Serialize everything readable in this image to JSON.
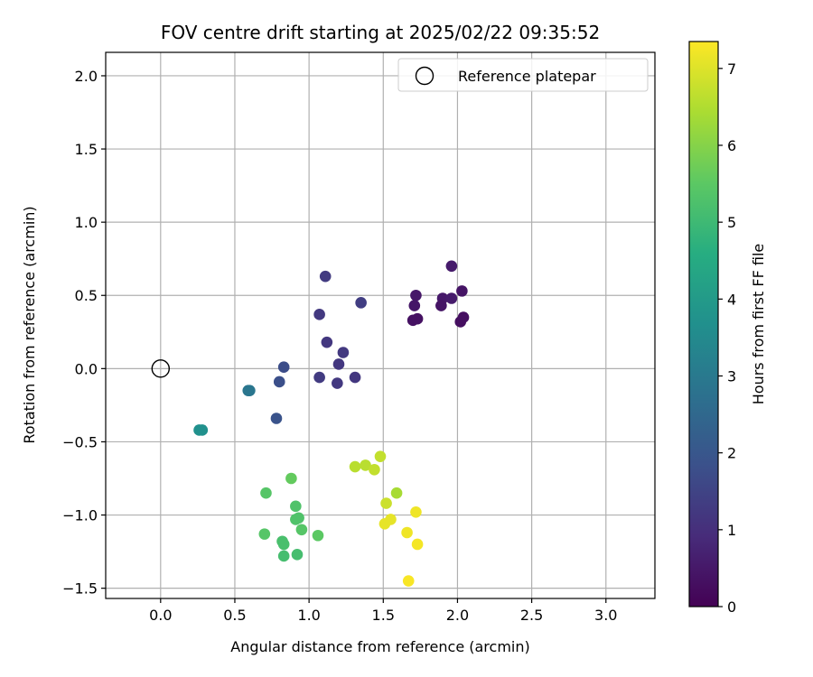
{
  "chart_data": {
    "type": "scatter",
    "title": "FOV centre drift starting at 2025/02/22 09:35:52",
    "xlabel": "Angular distance from reference (arcmin)",
    "ylabel": "Rotation from reference (arcmin)",
    "xlim": [
      -0.37,
      3.33
    ],
    "ylim": [
      -1.57,
      2.16
    ],
    "xticks": [
      "0.0",
      "0.5",
      "1.0",
      "1.5",
      "2.0",
      "2.5",
      "3.0"
    ],
    "yticks": [
      "−1.5",
      "−1.0",
      "−0.5",
      "0.0",
      "0.5",
      "1.0",
      "1.5",
      "2.0"
    ],
    "grid": true,
    "legend": {
      "position": "top-right",
      "entries": [
        "Reference platepar"
      ]
    },
    "reference_point": {
      "x": 0.0,
      "y": 0.0
    },
    "colorbar": {
      "label": "Hours from first FF file",
      "range": [
        0,
        7.35
      ],
      "ticks": [
        "0",
        "1",
        "2",
        "3",
        "4",
        "5",
        "6",
        "7"
      ],
      "colormap": "viridis"
    },
    "points": [
      {
        "x": 1.96,
        "y": 0.7,
        "c": 0.55
      },
      {
        "x": 1.72,
        "y": 0.5,
        "c": 0.5
      },
      {
        "x": 1.9,
        "y": 0.48,
        "c": 0.5
      },
      {
        "x": 1.96,
        "y": 0.48,
        "c": 0.55
      },
      {
        "x": 2.03,
        "y": 0.53,
        "c": 0.4
      },
      {
        "x": 1.71,
        "y": 0.43,
        "c": 0.45
      },
      {
        "x": 1.89,
        "y": 0.43,
        "c": 0.4
      },
      {
        "x": 1.7,
        "y": 0.33,
        "c": 0.35
      },
      {
        "x": 1.73,
        "y": 0.34,
        "c": 0.35
      },
      {
        "x": 2.02,
        "y": 0.32,
        "c": 0.3
      },
      {
        "x": 2.04,
        "y": 0.35,
        "c": 0.3
      },
      {
        "x": 1.11,
        "y": 0.63,
        "c": 1.3
      },
      {
        "x": 1.07,
        "y": 0.37,
        "c": 1.25
      },
      {
        "x": 1.35,
        "y": 0.45,
        "c": 1.35
      },
      {
        "x": 1.12,
        "y": 0.18,
        "c": 1.2
      },
      {
        "x": 1.23,
        "y": 0.11,
        "c": 1.25
      },
      {
        "x": 1.2,
        "y": 0.03,
        "c": 1.2
      },
      {
        "x": 1.07,
        "y": -0.06,
        "c": 1.3
      },
      {
        "x": 1.19,
        "y": -0.1,
        "c": 1.25
      },
      {
        "x": 1.31,
        "y": -0.06,
        "c": 1.2
      },
      {
        "x": 0.83,
        "y": 0.01,
        "c": 1.75
      },
      {
        "x": 0.8,
        "y": -0.09,
        "c": 1.8
      },
      {
        "x": 0.78,
        "y": -0.34,
        "c": 1.9
      },
      {
        "x": 0.59,
        "y": -0.15,
        "c": 2.9
      },
      {
        "x": 0.6,
        "y": -0.15,
        "c": 2.9
      },
      {
        "x": 0.26,
        "y": -0.42,
        "c": 3.7
      },
      {
        "x": 0.28,
        "y": -0.42,
        "c": 3.7
      },
      {
        "x": 0.88,
        "y": -0.75,
        "c": 5.6
      },
      {
        "x": 0.71,
        "y": -0.85,
        "c": 5.4
      },
      {
        "x": 0.91,
        "y": -0.94,
        "c": 5.3
      },
      {
        "x": 0.91,
        "y": -1.03,
        "c": 5.3
      },
      {
        "x": 0.93,
        "y": -1.02,
        "c": 5.3
      },
      {
        "x": 0.95,
        "y": -1.1,
        "c": 5.4
      },
      {
        "x": 0.7,
        "y": -1.13,
        "c": 5.4
      },
      {
        "x": 0.82,
        "y": -1.18,
        "c": 5.2
      },
      {
        "x": 0.83,
        "y": -1.2,
        "c": 5.2
      },
      {
        "x": 1.06,
        "y": -1.14,
        "c": 5.5
      },
      {
        "x": 0.83,
        "y": -1.28,
        "c": 5.15
      },
      {
        "x": 0.92,
        "y": -1.27,
        "c": 5.15
      },
      {
        "x": 1.31,
        "y": -0.67,
        "c": 6.6
      },
      {
        "x": 1.38,
        "y": -0.66,
        "c": 6.6
      },
      {
        "x": 1.44,
        "y": -0.69,
        "c": 6.7
      },
      {
        "x": 1.48,
        "y": -0.6,
        "c": 6.7
      },
      {
        "x": 1.59,
        "y": -0.85,
        "c": 6.4
      },
      {
        "x": 1.52,
        "y": -0.92,
        "c": 6.8
      },
      {
        "x": 1.72,
        "y": -0.98,
        "c": 7.2
      },
      {
        "x": 1.51,
        "y": -1.06,
        "c": 7.1
      },
      {
        "x": 1.55,
        "y": -1.03,
        "c": 7.1
      },
      {
        "x": 1.66,
        "y": -1.12,
        "c": 7.2
      },
      {
        "x": 1.73,
        "y": -1.2,
        "c": 7.25
      },
      {
        "x": 1.67,
        "y": -1.45,
        "c": 7.3
      }
    ]
  }
}
